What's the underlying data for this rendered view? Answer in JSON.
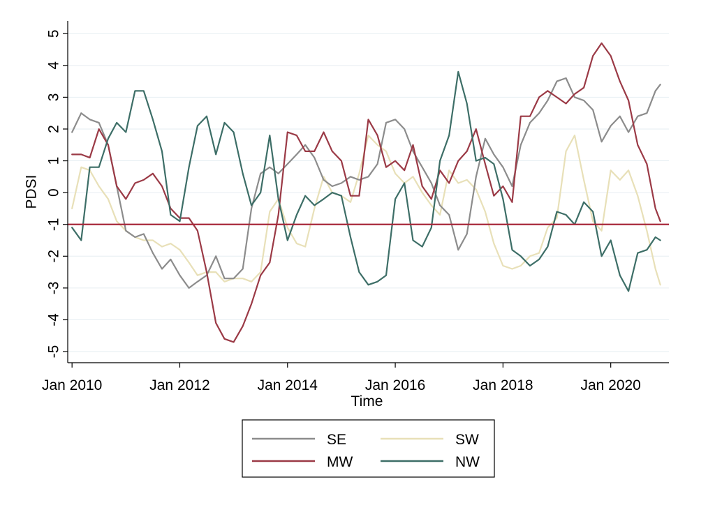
{
  "chart_data": {
    "type": "line",
    "title": "",
    "xlabel": "Time",
    "ylabel": "PDSI",
    "xlim": [
      2009.92,
      2021.08
    ],
    "ylim": [
      -5.35,
      5.4
    ],
    "x_ticks": [
      2010,
      2012,
      2014,
      2016,
      2018,
      2020
    ],
    "x_tick_labels": [
      "Jan 2010",
      "Jan 2012",
      "Jan 2014",
      "Jan 2016",
      "Jan 2018",
      "Jan 2020"
    ],
    "y_ticks": [
      5,
      4,
      3,
      2,
      1,
      0,
      -1,
      -2,
      -3,
      -4,
      -5
    ],
    "y_tick_labels": [
      "5",
      "4",
      "3",
      "2",
      "1",
      "0",
      "-1",
      "-2",
      "-3",
      "-4",
      "-5"
    ],
    "grid": true,
    "legend_position": "bottom",
    "reference_line": {
      "y": -1,
      "color": "#a8283a"
    },
    "series": [
      {
        "name": "SE",
        "color": "#8c8c8c",
        "x": [
          2010.0,
          2010.17,
          2010.33,
          2010.5,
          2010.67,
          2010.83,
          2011.0,
          2011.17,
          2011.33,
          2011.5,
          2011.67,
          2011.83,
          2012.0,
          2012.17,
          2012.33,
          2012.5,
          2012.67,
          2012.83,
          2013.0,
          2013.17,
          2013.33,
          2013.5,
          2013.67,
          2013.83,
          2014.0,
          2014.17,
          2014.33,
          2014.5,
          2014.67,
          2014.83,
          2015.0,
          2015.17,
          2015.33,
          2015.5,
          2015.67,
          2015.83,
          2016.0,
          2016.17,
          2016.33,
          2016.5,
          2016.67,
          2016.83,
          2017.0,
          2017.17,
          2017.33,
          2017.5,
          2017.67,
          2017.83,
          2018.0,
          2018.17,
          2018.33,
          2018.5,
          2018.67,
          2018.83,
          2019.0,
          2019.17,
          2019.33,
          2019.5,
          2019.67,
          2019.83,
          2020.0,
          2020.17,
          2020.33,
          2020.5,
          2020.67,
          2020.83,
          2020.92
        ],
        "y": [
          1.9,
          2.5,
          2.3,
          2.2,
          1.5,
          0.2,
          -1.2,
          -1.4,
          -1.3,
          -1.9,
          -2.4,
          -2.1,
          -2.6,
          -3.0,
          -2.8,
          -2.6,
          -2.0,
          -2.7,
          -2.7,
          -2.4,
          -0.5,
          0.6,
          0.8,
          0.6,
          0.9,
          1.2,
          1.5,
          1.1,
          0.4,
          0.2,
          0.3,
          0.5,
          0.4,
          0.5,
          0.9,
          2.2,
          2.3,
          2.0,
          1.3,
          0.8,
          0.3,
          -0.4,
          -0.7,
          -1.8,
          -1.3,
          0.5,
          1.7,
          1.2,
          0.8,
          0.2,
          1.5,
          2.2,
          2.5,
          2.9,
          3.5,
          3.6,
          3.0,
          2.9,
          2.6,
          1.6,
          2.1,
          2.4,
          1.9,
          2.4,
          2.5,
          3.2,
          3.4
        ]
      },
      {
        "name": "MW",
        "color": "#9b3a46",
        "x": [
          2010.0,
          2010.17,
          2010.33,
          2010.5,
          2010.67,
          2010.83,
          2011.0,
          2011.17,
          2011.33,
          2011.5,
          2011.67,
          2011.83,
          2012.0,
          2012.17,
          2012.33,
          2012.5,
          2012.67,
          2012.83,
          2013.0,
          2013.17,
          2013.33,
          2013.5,
          2013.67,
          2013.83,
          2014.0,
          2014.17,
          2014.33,
          2014.5,
          2014.67,
          2014.83,
          2015.0,
          2015.17,
          2015.33,
          2015.5,
          2015.67,
          2015.83,
          2016.0,
          2016.17,
          2016.33,
          2016.5,
          2016.67,
          2016.83,
          2017.0,
          2017.17,
          2017.33,
          2017.5,
          2017.67,
          2017.83,
          2018.0,
          2018.17,
          2018.33,
          2018.5,
          2018.67,
          2018.83,
          2019.0,
          2019.17,
          2019.33,
          2019.5,
          2019.67,
          2019.83,
          2020.0,
          2020.17,
          2020.33,
          2020.5,
          2020.67,
          2020.83,
          2020.92
        ],
        "y": [
          1.2,
          1.2,
          1.1,
          2.0,
          1.5,
          0.2,
          -0.2,
          0.3,
          0.4,
          0.6,
          0.2,
          -0.5,
          -0.8,
          -0.8,
          -1.2,
          -2.5,
          -4.1,
          -4.6,
          -4.7,
          -4.2,
          -3.5,
          -2.6,
          -2.2,
          -0.7,
          1.9,
          1.8,
          1.3,
          1.3,
          1.9,
          1.3,
          1.0,
          -0.1,
          -0.1,
          2.3,
          1.8,
          0.8,
          1.0,
          0.7,
          1.5,
          0.2,
          -0.2,
          0.7,
          0.3,
          1.0,
          1.3,
          2.0,
          0.9,
          -0.1,
          0.2,
          -0.3,
          2.4,
          2.4,
          3.0,
          3.2,
          3.0,
          2.8,
          3.1,
          3.3,
          4.3,
          4.7,
          4.3,
          3.5,
          2.9,
          1.5,
          0.9,
          -0.5,
          -0.9
        ]
      },
      {
        "name": "SW",
        "color": "#e8e0b8",
        "x": [
          2010.0,
          2010.17,
          2010.33,
          2010.5,
          2010.67,
          2010.83,
          2011.0,
          2011.17,
          2011.33,
          2011.5,
          2011.67,
          2011.83,
          2012.0,
          2012.17,
          2012.33,
          2012.5,
          2012.67,
          2012.83,
          2013.0,
          2013.17,
          2013.33,
          2013.5,
          2013.67,
          2013.83,
          2014.0,
          2014.17,
          2014.33,
          2014.5,
          2014.67,
          2014.83,
          2015.0,
          2015.17,
          2015.33,
          2015.5,
          2015.67,
          2015.83,
          2016.0,
          2016.17,
          2016.33,
          2016.5,
          2016.67,
          2016.83,
          2017.0,
          2017.17,
          2017.33,
          2017.5,
          2017.67,
          2017.83,
          2018.0,
          2018.17,
          2018.33,
          2018.5,
          2018.67,
          2018.83,
          2019.0,
          2019.17,
          2019.33,
          2019.5,
          2019.67,
          2019.83,
          2020.0,
          2020.17,
          2020.33,
          2020.5,
          2020.67,
          2020.83,
          2020.92
        ],
        "y": [
          -0.5,
          0.8,
          0.7,
          0.2,
          -0.2,
          -0.9,
          -1.2,
          -1.4,
          -1.5,
          -1.5,
          -1.7,
          -1.6,
          -1.8,
          -2.2,
          -2.6,
          -2.5,
          -2.5,
          -2.8,
          -2.7,
          -2.7,
          -2.8,
          -2.5,
          -0.6,
          -0.2,
          -1.1,
          -1.6,
          -1.7,
          -0.5,
          0.5,
          0.0,
          -0.1,
          -0.3,
          0.6,
          1.8,
          1.5,
          1.3,
          0.6,
          0.3,
          0.5,
          0.0,
          -0.4,
          -0.7,
          0.7,
          0.3,
          0.4,
          0.1,
          -0.6,
          -1.6,
          -2.3,
          -2.4,
          -2.3,
          -2.0,
          -1.9,
          -1.1,
          -0.8,
          1.3,
          1.8,
          0.4,
          -0.9,
          -1.2,
          0.7,
          0.4,
          0.7,
          -0.1,
          -1.2,
          -2.4,
          -2.9
        ]
      },
      {
        "name": "NW",
        "color": "#3d6e67",
        "x": [
          2010.0,
          2010.17,
          2010.33,
          2010.5,
          2010.67,
          2010.83,
          2011.0,
          2011.17,
          2011.33,
          2011.5,
          2011.67,
          2011.83,
          2012.0,
          2012.17,
          2012.33,
          2012.5,
          2012.67,
          2012.83,
          2013.0,
          2013.17,
          2013.33,
          2013.5,
          2013.67,
          2013.83,
          2014.0,
          2014.17,
          2014.33,
          2014.5,
          2014.67,
          2014.83,
          2015.0,
          2015.17,
          2015.33,
          2015.5,
          2015.67,
          2015.83,
          2016.0,
          2016.17,
          2016.33,
          2016.5,
          2016.67,
          2016.83,
          2017.0,
          2017.17,
          2017.33,
          2017.5,
          2017.67,
          2017.83,
          2018.0,
          2018.17,
          2018.33,
          2018.5,
          2018.67,
          2018.83,
          2019.0,
          2019.17,
          2019.33,
          2019.5,
          2019.67,
          2019.83,
          2020.0,
          2020.17,
          2020.33,
          2020.5,
          2020.67,
          2020.83,
          2020.92
        ],
        "y": [
          -1.1,
          -1.5,
          0.8,
          0.8,
          1.7,
          2.2,
          1.9,
          3.2,
          3.2,
          2.3,
          1.3,
          -0.7,
          -0.9,
          0.8,
          2.1,
          2.4,
          1.2,
          2.2,
          1.9,
          0.6,
          -0.4,
          0.0,
          1.8,
          -0.2,
          -1.5,
          -0.7,
          -0.1,
          -0.4,
          -0.2,
          0.0,
          -0.1,
          -1.4,
          -2.5,
          -2.9,
          -2.8,
          -2.6,
          -0.2,
          0.3,
          -1.5,
          -1.7,
          -1.1,
          1.0,
          1.8,
          3.8,
          2.8,
          1.0,
          1.1,
          0.9,
          -0.2,
          -1.8,
          -2.0,
          -2.3,
          -2.1,
          -1.7,
          -0.6,
          -0.7,
          -1.0,
          -0.3,
          -0.6,
          -2.0,
          -1.5,
          -2.6,
          -3.1,
          -1.9,
          -1.8,
          -1.4,
          -1.5
        ]
      }
    ],
    "legend": [
      {
        "name": "SE",
        "color": "#8c8c8c"
      },
      {
        "name": "SW",
        "color": "#e8e0b8"
      },
      {
        "name": "MW",
        "color": "#9b3a46"
      },
      {
        "name": "NW",
        "color": "#3d6e67"
      }
    ]
  }
}
